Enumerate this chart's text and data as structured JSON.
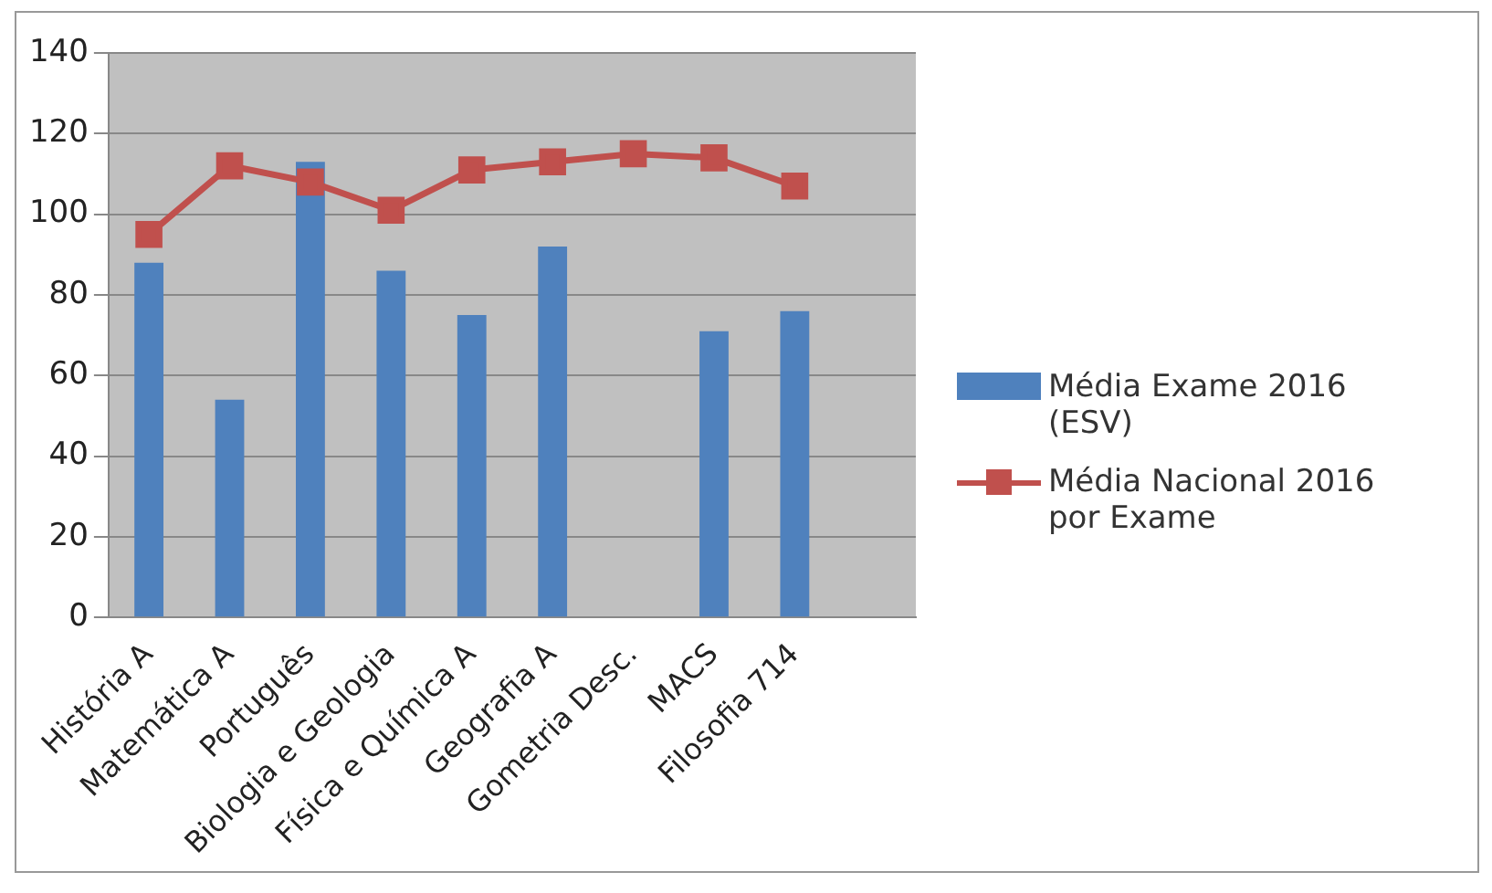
{
  "chart_data": {
    "type": "bar",
    "categories": [
      "História A",
      "Matemática A",
      "Português",
      "Biologia e Geologia",
      "Física e Química A",
      "Geografia A",
      "Gometria Desc.",
      "MACS",
      "Filosofia 714",
      null
    ],
    "series": [
      {
        "name": "Média Exame 2016 (ESV)",
        "color": "#4f81bd",
        "values": [
          88,
          54,
          113,
          86,
          75,
          92,
          null,
          71,
          76,
          null
        ]
      },
      {
        "name": "Média Nacional 2016 por Exame",
        "type": "line",
        "color": "#c0504d",
        "marker": "square",
        "values": [
          95,
          112,
          108,
          101,
          111,
          113,
          115,
          114,
          107,
          null
        ]
      }
    ],
    "ylim": [
      0,
      140
    ],
    "yticks": [
      0,
      20,
      40,
      60,
      80,
      100,
      120,
      140
    ],
    "grid": "y",
    "legend": "right"
  }
}
